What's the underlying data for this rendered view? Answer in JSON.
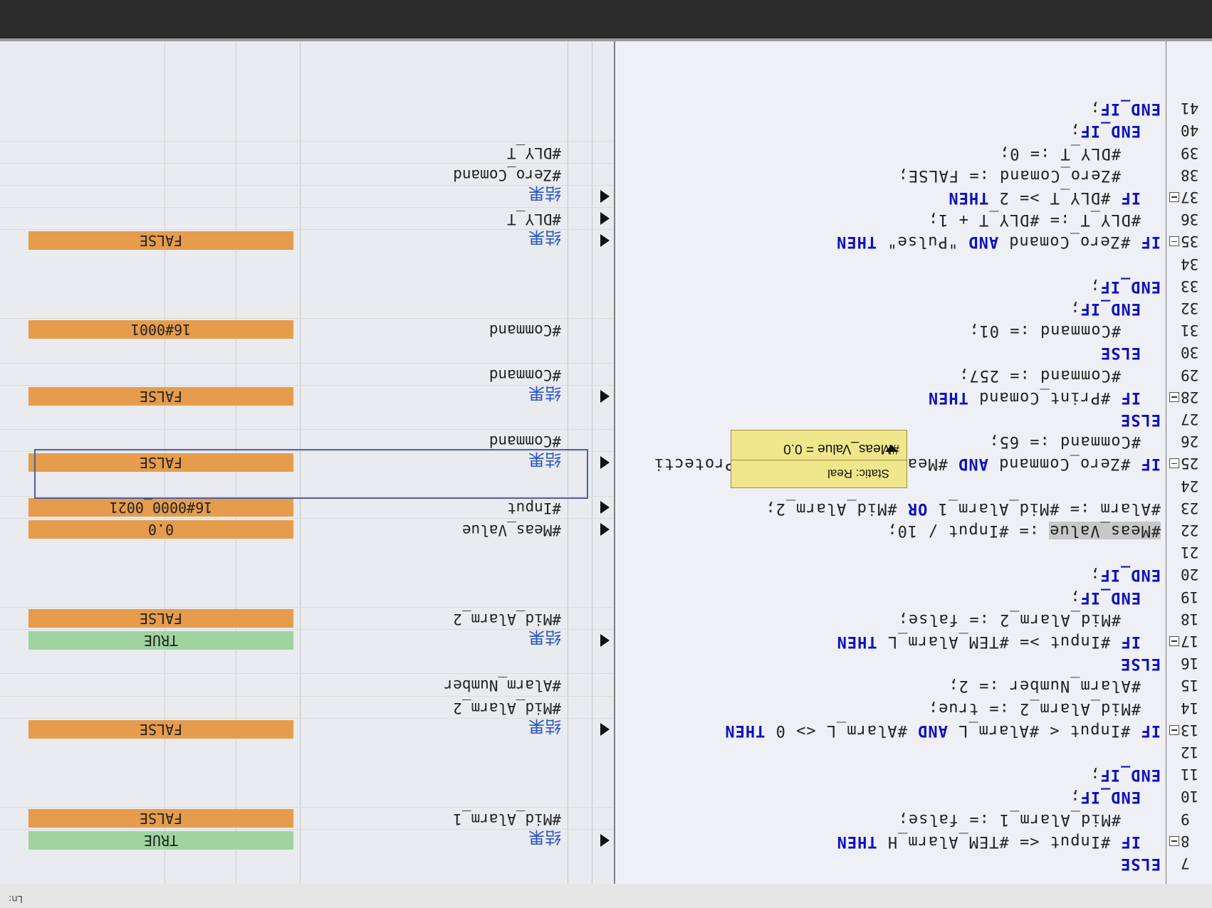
{
  "status": {
    "ln_label": "Ln:"
  },
  "tooltip": {
    "text": "#Meas_Value = 0.0",
    "type": "Static: Real"
  },
  "code_lines": [
    {
      "n": "7",
      "text": "ELSE",
      "indent": 0,
      "fold": false
    },
    {
      "n": "8",
      "text": "IF #Input <= #TEM_Alarm_H THEN",
      "indent": 2,
      "fold": true
    },
    {
      "n": "9",
      "text": "#Mid_Alarm_1 := false;",
      "indent": 4,
      "fold": false
    },
    {
      "n": "10",
      "text": "END_IF;",
      "indent": 2,
      "fold": false
    },
    {
      "n": "11",
      "text": "END_IF;",
      "indent": 0,
      "fold": false
    },
    {
      "n": "12",
      "text": "",
      "indent": 0,
      "fold": false
    },
    {
      "n": "13",
      "text": "IF #Input < #Alarm_L AND #Alarm_L <> 0 THEN",
      "indent": 0,
      "fold": true
    },
    {
      "n": "14",
      "text": "#Mid_Alarm_2 := true;",
      "indent": 2,
      "fold": false
    },
    {
      "n": "15",
      "text": "#Alarm_Number := 2;",
      "indent": 2,
      "fold": false
    },
    {
      "n": "16",
      "text": "ELSE",
      "indent": 0,
      "fold": false
    },
    {
      "n": "17",
      "text": "IF #Input >= #TEM_Alarm_L THEN",
      "indent": 2,
      "fold": true
    },
    {
      "n": "18",
      "text": "#Mid_Alarm_2 := false;",
      "indent": 4,
      "fold": false
    },
    {
      "n": "19",
      "text": "END_IF;",
      "indent": 2,
      "fold": false
    },
    {
      "n": "20",
      "text": "END_IF;",
      "indent": 0,
      "fold": false
    },
    {
      "n": "21",
      "text": "",
      "indent": 0,
      "fold": false
    },
    {
      "n": "22",
      "text": "#Meas_Value := #Input / 10;",
      "indent": 0,
      "fold": false
    },
    {
      "n": "23",
      "text": "#Alarm := #Mid_Alarm_1 OR #Mid_Alarm_2;",
      "indent": 0,
      "fold": false
    },
    {
      "n": "24",
      "text": "",
      "indent": 0,
      "fold": false
    },
    {
      "n": "25",
      "text": "IF #Zero_Command AND #Meas_Value <= #Zero_Protecti",
      "indent": 0,
      "fold": true
    },
    {
      "n": "26",
      "text": "#Command := 65;",
      "indent": 2,
      "fold": false
    },
    {
      "n": "27",
      "text": "ELSE",
      "indent": 0,
      "fold": false
    },
    {
      "n": "28",
      "text": "IF #Print_Comand THEN",
      "indent": 2,
      "fold": true
    },
    {
      "n": "29",
      "text": "#Command := 257;",
      "indent": 4,
      "fold": false
    },
    {
      "n": "30",
      "text": "ELSE",
      "indent": 2,
      "fold": false
    },
    {
      "n": "31",
      "text": "#Command := 01;",
      "indent": 4,
      "fold": false
    },
    {
      "n": "32",
      "text": "END_IF;",
      "indent": 2,
      "fold": false
    },
    {
      "n": "33",
      "text": "END_IF;",
      "indent": 0,
      "fold": false
    },
    {
      "n": "34",
      "text": "",
      "indent": 0,
      "fold": false
    },
    {
      "n": "35",
      "text": "IF #Zero_Comand AND \"Pulse\" THEN",
      "indent": 0,
      "fold": true
    },
    {
      "n": "36",
      "text": "#DLY_T := #DLY_T + 1;",
      "indent": 2,
      "fold": false
    },
    {
      "n": "37",
      "text": "IF #DLY_T >= 2 THEN",
      "indent": 2,
      "fold": true
    },
    {
      "n": "38",
      "text": "#Zero_Comand := FALSE;",
      "indent": 4,
      "fold": false
    },
    {
      "n": "39",
      "text": "#DLY_T := 0;",
      "indent": 4,
      "fold": false
    },
    {
      "n": "40",
      "text": "END_IF;",
      "indent": 2,
      "fold": false
    },
    {
      "n": "41",
      "text": "END_IF;",
      "indent": 0,
      "fold": false
    }
  ],
  "watch_rows": [
    {
      "line": "8",
      "arrow": true,
      "name": "结果",
      "result": true,
      "value": "TRUE",
      "color": "green"
    },
    {
      "line": "9",
      "arrow": false,
      "name": "#Mid_Alarm_1",
      "result": false,
      "value": "FALSE",
      "color": "orange"
    },
    {
      "line": "13",
      "arrow": true,
      "name": "结果",
      "result": true,
      "value": "FALSE",
      "color": "orange"
    },
    {
      "line": "14",
      "arrow": false,
      "name": "#Mid_Alarm_2",
      "result": false,
      "value": "",
      "color": ""
    },
    {
      "line": "15",
      "arrow": false,
      "name": "#Alarm_Number",
      "result": false,
      "value": "",
      "color": ""
    },
    {
      "line": "17",
      "arrow": true,
      "name": "结果",
      "result": true,
      "value": "TRUE",
      "color": "green"
    },
    {
      "line": "18",
      "arrow": false,
      "name": "#Mid_Alarm_2",
      "result": false,
      "value": "FALSE",
      "color": "orange"
    },
    {
      "line": "22",
      "arrow": true,
      "name": "#Meas_Value",
      "result": false,
      "value": "0.0",
      "color": "orange"
    },
    {
      "line": "23",
      "arrow": true,
      "name": "#Input",
      "result": false,
      "value": "16#0000_0021",
      "color": "orange"
    },
    {
      "line": "25",
      "arrow": true,
      "name": "结果",
      "result": true,
      "value": "FALSE",
      "color": "orange"
    },
    {
      "line": "26",
      "arrow": false,
      "name": "#Command",
      "result": false,
      "value": "",
      "color": ""
    },
    {
      "line": "28",
      "arrow": true,
      "name": "结果",
      "result": true,
      "value": "FALSE",
      "color": "orange"
    },
    {
      "line": "29",
      "arrow": false,
      "name": "#Command",
      "result": false,
      "value": "",
      "color": ""
    },
    {
      "line": "31",
      "arrow": false,
      "name": "#Command",
      "result": false,
      "value": "16#0001",
      "color": "orange"
    },
    {
      "line": "35",
      "arrow": true,
      "name": "结果",
      "result": true,
      "value": "FALSE",
      "color": "orange"
    },
    {
      "line": "36",
      "arrow": true,
      "name": "#DLY_T",
      "result": false,
      "value": "",
      "color": ""
    },
    {
      "line": "37",
      "arrow": true,
      "name": "结果",
      "result": true,
      "value": "",
      "color": ""
    },
    {
      "line": "38",
      "arrow": false,
      "name": "#Zero_Comand",
      "result": false,
      "value": "",
      "color": ""
    },
    {
      "line": "39",
      "arrow": false,
      "name": "#DLY_T",
      "result": false,
      "value": "",
      "color": ""
    }
  ],
  "colors": {
    "keyword": "#1010c0",
    "false_bg": "#e59c4c",
    "true_bg": "#9fd49f",
    "result_text": "#2c56c8"
  }
}
